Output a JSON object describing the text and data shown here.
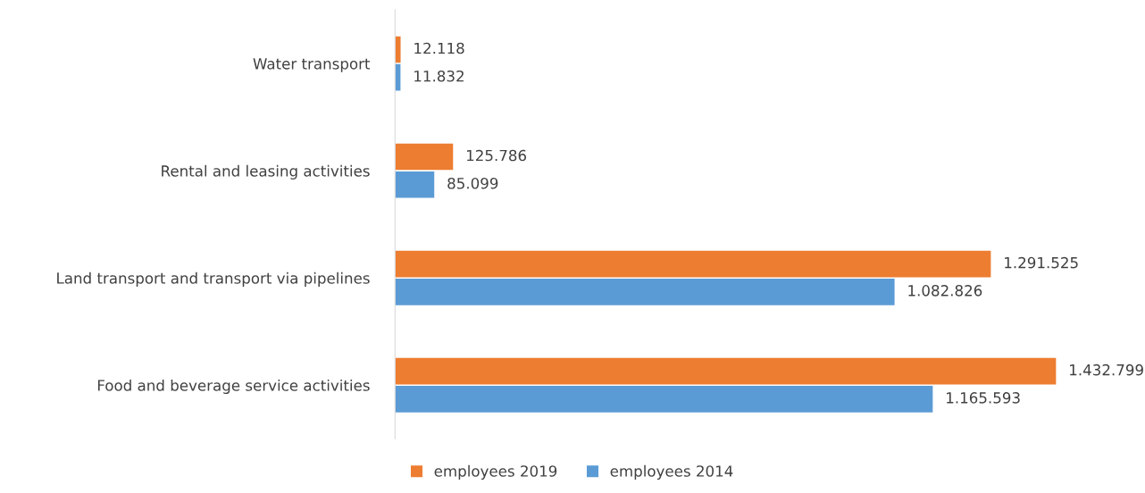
{
  "chart_data": {
    "type": "bar",
    "orientation": "horizontal",
    "categories": [
      "Water transport",
      "Rental and leasing activities",
      "Land transport and transport via pipelines",
      "Food and beverage service activities"
    ],
    "series": [
      {
        "name": "employees 2019",
        "color": "#ed7d31",
        "values": [
          12118,
          125786,
          1291525,
          1432799
        ],
        "value_labels": [
          "12.118",
          "125.786",
          "1.291.525",
          "1.432.799"
        ]
      },
      {
        "name": "employees 2014",
        "color": "#5b9bd5",
        "values": [
          11832,
          85099,
          1082826,
          1165593
        ],
        "value_labels": [
          "11.832",
          "85.099",
          "1.082.826",
          "1.165.593"
        ]
      }
    ],
    "tick_labels": "y",
    "grid": false,
    "legend": "bottom"
  }
}
